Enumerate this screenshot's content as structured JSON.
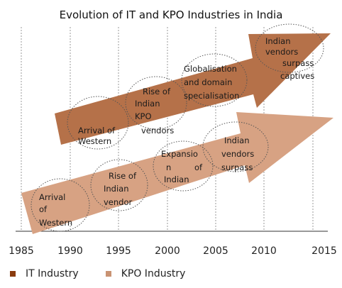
{
  "title": "Evolution of IT and KPO Industries in India",
  "years": [
    "1985",
    "1990",
    "1995",
    "2000",
    "2005",
    "2010",
    "2015"
  ],
  "colors": {
    "it": "#b57149",
    "kpo": "#d7a283",
    "it_swatch": "#8a3b0e",
    "kpo_swatch": "#c99373"
  },
  "legend": {
    "it": "IT Industry",
    "kpo": "KPO Industry"
  },
  "it_stages": [
    [
      "Arrival of",
      "Western"
    ],
    [
      "Rise of",
      "Indian",
      "KPO",
      "vendors"
    ],
    [
      "Globalisation",
      "and domain",
      "specialisation"
    ],
    [
      "Indian",
      "vendors",
      "surpass",
      "captives"
    ]
  ],
  "kpo_stages": [
    [
      "Arrival",
      "of",
      "Western"
    ],
    [
      "Rise  of",
      "Indian",
      "vendor"
    ],
    [
      "Expansio",
      "n",
      "of",
      "Indian"
    ],
    [
      "Indian",
      "vendors",
      "surpass"
    ]
  ]
}
